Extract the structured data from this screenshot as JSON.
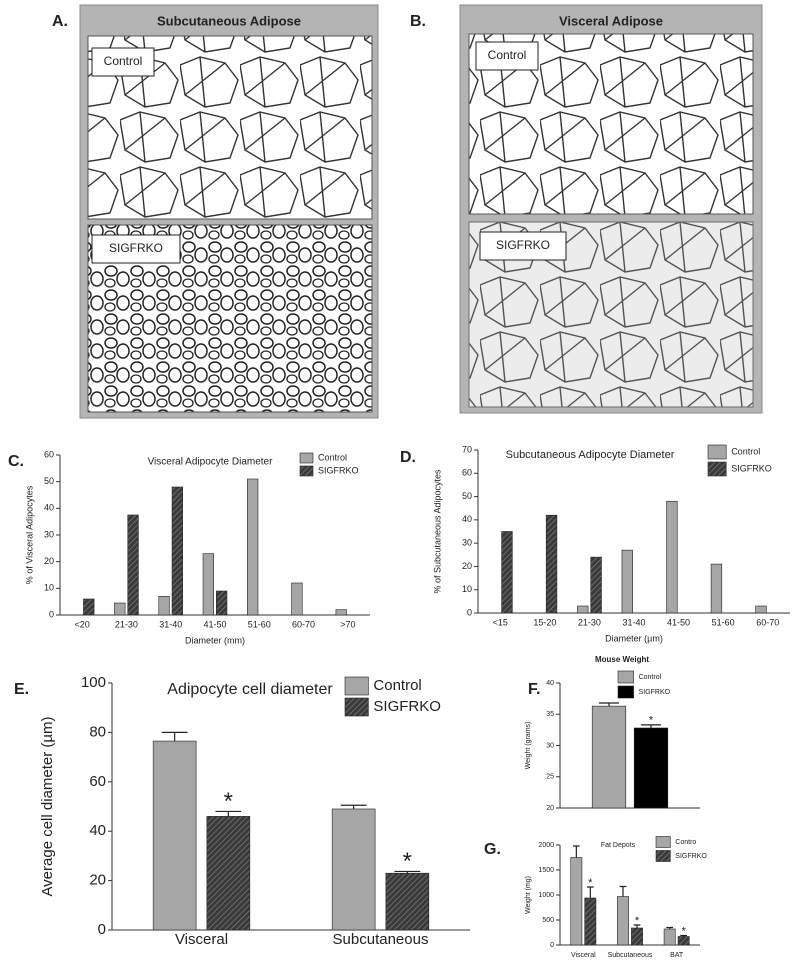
{
  "figure": {
    "panels": [
      {
        "letter": "A.",
        "title": "Subcutaneous Adipose",
        "images": [
          "Control",
          "SIGFRKO"
        ]
      },
      {
        "letter": "B.",
        "title": "Visceral Adipose",
        "images": [
          "Control",
          "SIGFRKO"
        ]
      }
    ]
  },
  "chart_data": [
    {
      "type": "bar",
      "panel": "C.",
      "title": "Visceral Adipocyte Diameter",
      "xlabel": "Diameter (mm)",
      "ylabel": "% of Visceral Adipocytes",
      "categories": [
        "<20",
        "21-30",
        "31-40",
        "41-50",
        "51-60",
        "60-70",
        ">70"
      ],
      "series": [
        {
          "name": "Control",
          "color": "#a6a6a6",
          "values": [
            0,
            4.5,
            7,
            23,
            51,
            12,
            2
          ]
        },
        {
          "name": "SIGFRKO",
          "color": "#3a3a3a",
          "hatch": true,
          "values": [
            6,
            37.5,
            48,
            9,
            0,
            0,
            0
          ]
        }
      ],
      "ylim": [
        0,
        60
      ],
      "yticks": [
        0,
        10,
        20,
        30,
        40,
        50,
        60
      ],
      "legend": "upper right"
    },
    {
      "type": "bar",
      "panel": "D.",
      "title": "Subcutaneous Adipocyte Diameter",
      "xlabel": "Diameter (µm)",
      "ylabel": "% of Subcutaneous Adipocytes",
      "categories": [
        "<15",
        "15-20",
        "21-30",
        "31-40",
        "41-50",
        "51-60",
        "60-70"
      ],
      "series": [
        {
          "name": "Control",
          "color": "#a6a6a6",
          "values": [
            0,
            0,
            3,
            27,
            48,
            21,
            3
          ]
        },
        {
          "name": "SIGFRKO",
          "color": "#3a3a3a",
          "hatch": true,
          "values": [
            35,
            42,
            24,
            0,
            0,
            0,
            0
          ]
        }
      ],
      "ylim": [
        0,
        70
      ],
      "yticks": [
        0,
        10,
        20,
        30,
        40,
        50,
        60,
        70
      ],
      "legend": "upper right"
    },
    {
      "type": "bar",
      "panel": "E.",
      "title": "Adipocyte cell diameter",
      "ylabel": "Average cell diameter (µm)",
      "categories": [
        "Visceral",
        "Subcutaneous"
      ],
      "series": [
        {
          "name": "Control",
          "color": "#a6a6a6",
          "values": [
            76.5,
            49
          ],
          "errors": [
            3.5,
            1.5
          ]
        },
        {
          "name": "SIGFRKO",
          "color": "#3a3a3a",
          "hatch": true,
          "values": [
            46,
            23
          ],
          "errors": [
            2,
            0.7
          ],
          "annotations": [
            "*",
            "*"
          ]
        }
      ],
      "ylim": [
        0,
        100
      ],
      "yticks": [
        0,
        20,
        40,
        60,
        80,
        100
      ],
      "legend": "upper right"
    },
    {
      "type": "bar",
      "panel": "F.",
      "title": "Mouse Weight",
      "ylabel": "Weight (grams)",
      "categories": [
        null
      ],
      "series": [
        {
          "name": "Control",
          "color": "#a6a6a6",
          "values": [
            36.3
          ],
          "errors": [
            0.5
          ]
        },
        {
          "name": "SIGFRKO",
          "color": "#000000",
          "values": [
            32.8
          ],
          "errors": [
            0.5
          ],
          "annotations": [
            "*"
          ]
        }
      ],
      "ylim": [
        20,
        40
      ],
      "yticks": [
        20,
        25,
        30,
        35,
        40
      ],
      "legend": "upper right"
    },
    {
      "type": "bar",
      "panel": "G.",
      "title": "Fat Depots",
      "ylabel": "Weight (mg)",
      "categories": [
        "Visceral",
        "Subcutaneous",
        "BAT"
      ],
      "series": [
        {
          "name": "Contro",
          "color": "#a6a6a6",
          "values": [
            1750,
            970,
            320
          ],
          "errors": [
            230,
            200,
            30
          ]
        },
        {
          "name": "SIGFRKO",
          "color": "#3a3a3a",
          "hatch": true,
          "values": [
            940,
            340,
            170
          ],
          "errors": [
            220,
            60,
            20
          ],
          "annotations": [
            "*",
            "*",
            "*"
          ]
        }
      ],
      "ylim": [
        0,
        2000
      ],
      "yticks": [
        0,
        500,
        1000,
        1500,
        2000
      ],
      "legend": "upper right"
    }
  ]
}
